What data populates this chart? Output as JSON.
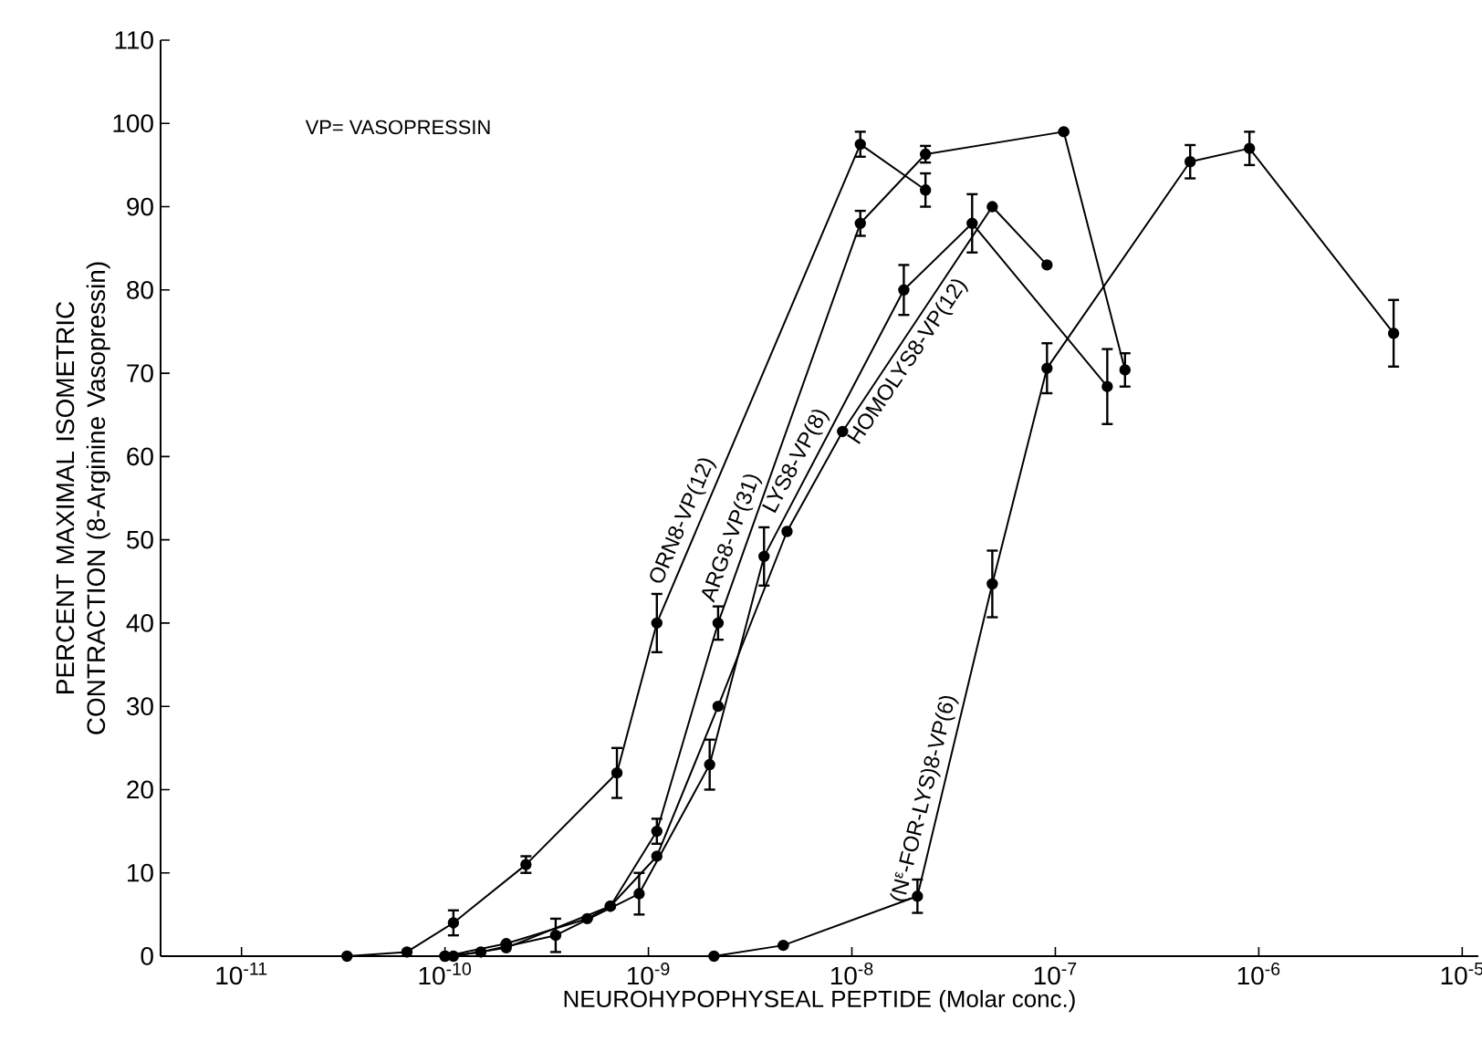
{
  "chart_data": {
    "type": "line",
    "xlabel": "NEUROHYPOPHYSEAL PEPTIDE (Molar conc.)",
    "ylabel": "PERCENT MAXIMAL ISOMETRIC CONTRACTION (8-Arginine Vasopressin)",
    "log": "x",
    "marker": "circle",
    "line_style": "solid",
    "xlim": [
      4e-12,
      1.2e-05
    ],
    "ylim": [
      0,
      110
    ],
    "xticks": [
      {
        "value": 1e-11,
        "label": "10$^{-11}$"
      },
      {
        "value": 1e-10,
        "label": "10$^{-10}$"
      },
      {
        "value": 1e-09,
        "label": "10$^{-9}$"
      },
      {
        "value": 1e-08,
        "label": "10$^{-8}$"
      },
      {
        "value": 1e-07,
        "label": "10$^{-7}$"
      },
      {
        "value": 1e-06,
        "label": "10$^{-6}$"
      },
      {
        "value": 1e-05,
        "label": "10$^{-5}$"
      }
    ],
    "yticks": [
      0,
      10,
      20,
      30,
      40,
      50,
      60,
      70,
      80,
      90,
      100,
      110
    ],
    "annotations": [
      "VP= VASOPRESSIN"
    ],
    "series": [
      {
        "name": "ORN8-VP(12)",
        "color": "#000000",
        "x": [
          3.3e-11,
          6.5e-11,
          1.1e-10,
          2.5e-10,
          7e-10,
          1.1e-09,
          1.1e-08,
          2.3e-08
        ],
        "values": [
          0,
          0.5,
          4,
          11,
          22,
          40,
          97.5,
          92
        ],
        "errors": [
          null,
          null,
          1.5,
          1,
          3,
          3.5,
          1.5,
          2
        ]
      },
      {
        "name": "ARG8-VP(31)",
        "color": "#000000",
        "x": [
          1e-10,
          2e-10,
          5e-10,
          6.5e-10,
          1.1e-09,
          2.2e-09,
          1.1e-08,
          2.3e-08,
          1.1e-07,
          2.2e-07
        ],
        "values": [
          0,
          1.5,
          4.5,
          6,
          15,
          40,
          88,
          96.3,
          99,
          70.4
        ],
        "errors": [
          null,
          null,
          null,
          null,
          1.5,
          2,
          1.5,
          1,
          null,
          2
        ]
      },
      {
        "name": "LYS8-VP(8)",
        "color": "#000000",
        "x": [
          1e-10,
          1.5e-10,
          3.5e-10,
          9e-10,
          2e-09,
          3.7e-09,
          1.8e-08,
          3.9e-08,
          1.8e-07
        ],
        "values": [
          0,
          0.5,
          2.5,
          7.5,
          23,
          48,
          80,
          88,
          68.4
        ],
        "errors": [
          null,
          null,
          2,
          2.5,
          3,
          3.5,
          3,
          3.5,
          4.5
        ]
      },
      {
        "name": "HOMOLYS8-VP(12)",
        "color": "#000000",
        "x": [
          1.1e-10,
          2e-10,
          6.5e-10,
          1.1e-09,
          2.2e-09,
          4.8e-09,
          9e-09,
          4.9e-08,
          9.1e-08
        ],
        "values": [
          0,
          1,
          6,
          12,
          30,
          51,
          63,
          90,
          83
        ]
      },
      {
        "name": "(N$^{ε}$-FOR-LYS)8-VP(6)",
        "color": "#000000",
        "x": [
          2.1e-09,
          4.6e-09,
          2.1e-08,
          4.9e-08,
          9.1e-08,
          4.6e-07,
          9e-07,
          4.6e-06
        ],
        "values": [
          0,
          1.3,
          7.2,
          44.7,
          70.6,
          95.4,
          97,
          74.8
        ],
        "errors": [
          null,
          null,
          2,
          4,
          3,
          2,
          2,
          4
        ]
      }
    ]
  }
}
